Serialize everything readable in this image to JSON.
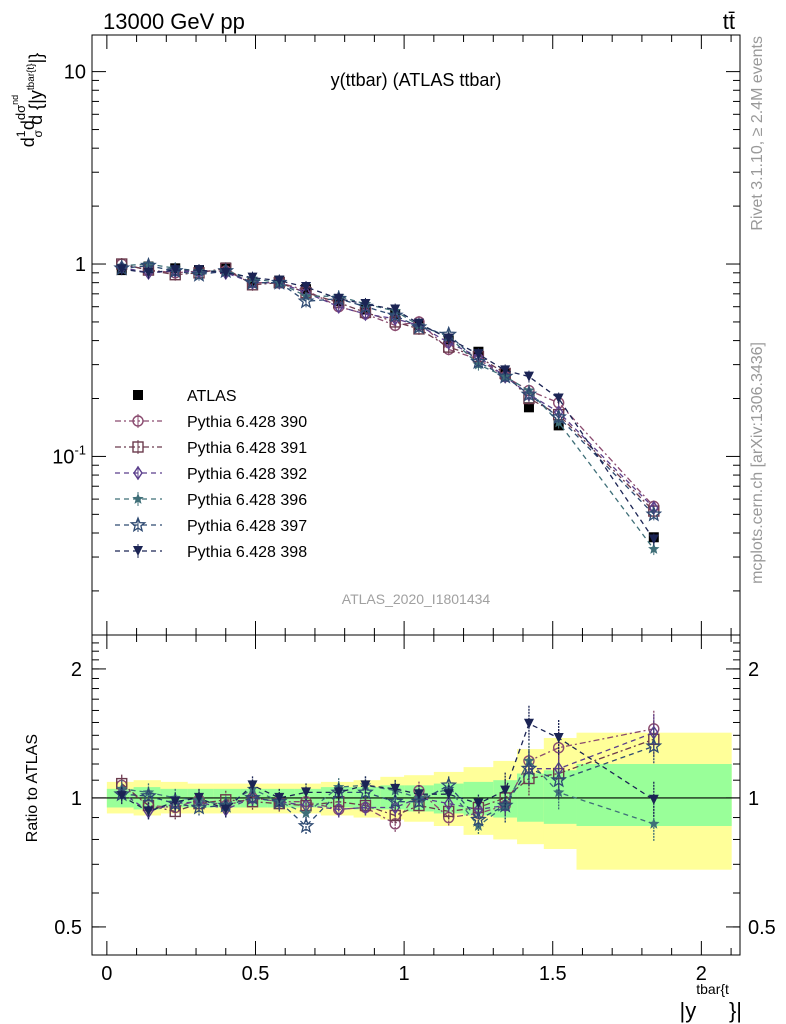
{
  "header": {
    "energy_label": "13000 GeV pp",
    "process_label": "tt̄",
    "rivet_label": "Rivet 3.1.10, ≥ 2.4M events",
    "mcplots_label": "mcplots.cern.ch [arXiv:1306.3436]"
  },
  "chart_data": [
    {
      "type": "scatter",
      "title": "y(ttbar) (ATLAS ttbar)",
      "watermark": "ATLAS_2020_I1801434",
      "ylabel": "1/σ dσ^nd / d{|y^tbar{t}|}",
      "xlabel": "|y^tbar{t}|",
      "xlim": [
        -0.05,
        2.13
      ],
      "ylim": [
        0.0118,
        15.5
      ],
      "yscale": "log",
      "y_ticks": [
        "10^-1",
        "1",
        "10"
      ],
      "legend_position": "middle-left",
      "x": [
        0.05,
        0.14,
        0.23,
        0.31,
        0.4,
        0.49,
        0.58,
        0.67,
        0.78,
        0.87,
        0.97,
        1.05,
        1.15,
        1.25,
        1.34,
        1.42,
        1.52,
        1.84
      ],
      "series": [
        {
          "name": "ATLAS",
          "marker": "filled-square",
          "color": "#000000",
          "y": [
            0.93,
            0.97,
            0.95,
            0.93,
            0.96,
            0.8,
            0.82,
            0.74,
            0.64,
            0.58,
            0.55,
            0.48,
            0.4,
            0.35,
            0.27,
            0.18,
            0.145,
            0.038
          ]
        },
        {
          "name": "Pythia 6.428 390",
          "marker": "open-circle",
          "color": "#8a4b6f",
          "dash": "6,3,2,3",
          "y": [
            1.0,
            0.93,
            0.9,
            0.92,
            0.92,
            0.8,
            0.8,
            0.73,
            0.6,
            0.55,
            0.48,
            0.5,
            0.36,
            0.32,
            0.26,
            0.22,
            0.19,
            0.055
          ]
        },
        {
          "name": "Pythia 6.428 391",
          "marker": "open-square",
          "color": "#6b3b4d",
          "dash": "6,3,2,3",
          "y": [
            1.0,
            0.93,
            0.88,
            0.9,
            0.95,
            0.78,
            0.8,
            0.71,
            0.63,
            0.56,
            0.5,
            0.46,
            0.37,
            0.33,
            0.27,
            0.2,
            0.165,
            0.052
          ]
        },
        {
          "name": "Pythia 6.428 392",
          "marker": "open-diamond",
          "color": "#5b3f8c",
          "dash": "5,4",
          "y": [
            0.96,
            0.9,
            0.92,
            0.91,
            0.9,
            0.8,
            0.8,
            0.71,
            0.6,
            0.55,
            0.52,
            0.48,
            0.39,
            0.33,
            0.26,
            0.21,
            0.17,
            0.054
          ]
        },
        {
          "name": "Pythia 6.428 396",
          "marker": "filled-star",
          "color": "#3f6f78",
          "dash": "5,4",
          "y": [
            0.98,
            1.0,
            0.95,
            0.92,
            0.92,
            0.84,
            0.8,
            0.68,
            0.68,
            0.62,
            0.57,
            0.48,
            0.42,
            0.3,
            0.26,
            0.22,
            0.15,
            0.033
          ]
        },
        {
          "name": "Pythia 6.428 397",
          "marker": "open-star",
          "color": "#2e4a72",
          "dash": "5,4",
          "y": [
            0.95,
            0.98,
            0.92,
            0.88,
            0.92,
            0.8,
            0.8,
            0.64,
            0.66,
            0.6,
            0.54,
            0.47,
            0.43,
            0.31,
            0.26,
            0.21,
            0.16,
            0.05
          ]
        },
        {
          "name": "Pythia 6.428 398",
          "marker": "filled-triangle-down",
          "color": "#1b2454",
          "dash": "5,4",
          "y": [
            0.94,
            0.9,
            0.93,
            0.93,
            0.9,
            0.85,
            0.82,
            0.76,
            0.66,
            0.62,
            0.58,
            0.49,
            0.41,
            0.34,
            0.28,
            0.26,
            0.2,
            0.037
          ]
        }
      ]
    },
    {
      "type": "scatter",
      "ylabel": "Ratio to ATLAS",
      "xlabel": "|y^tbar{t}|",
      "xlim": [
        -0.05,
        2.13
      ],
      "ylim": [
        0.43,
        2.4
      ],
      "yscale": "log",
      "y_ticks": [
        "0.5",
        "1",
        "2"
      ],
      "x_ticks": [
        "0",
        "0.5",
        "1",
        "1.5",
        "2"
      ],
      "reference_line": 1,
      "bin_edges": [
        0.0,
        0.09,
        0.18,
        0.27,
        0.36,
        0.45,
        0.54,
        0.63,
        0.72,
        0.83,
        0.92,
        1.0,
        1.1,
        1.2,
        1.3,
        1.38,
        1.47,
        1.58,
        2.1
      ],
      "band_inner": [
        [
          0.95,
          1.05
        ],
        [
          0.94,
          1.06
        ],
        [
          0.95,
          1.05
        ],
        [
          0.95,
          1.05
        ],
        [
          0.95,
          1.05
        ],
        [
          0.95,
          1.05
        ],
        [
          0.95,
          1.05
        ],
        [
          0.95,
          1.05
        ],
        [
          0.95,
          1.06
        ],
        [
          0.94,
          1.06
        ],
        [
          0.94,
          1.07
        ],
        [
          0.93,
          1.07
        ],
        [
          0.92,
          1.08
        ],
        [
          0.91,
          1.09
        ],
        [
          0.9,
          1.1
        ],
        [
          0.88,
          1.14
        ],
        [
          0.87,
          1.16
        ],
        [
          0.86,
          1.2
        ]
      ],
      "band_outer": [
        [
          0.92,
          1.09
        ],
        [
          0.91,
          1.1
        ],
        [
          0.92,
          1.09
        ],
        [
          0.92,
          1.08
        ],
        [
          0.92,
          1.08
        ],
        [
          0.92,
          1.08
        ],
        [
          0.92,
          1.08
        ],
        [
          0.92,
          1.08
        ],
        [
          0.91,
          1.09
        ],
        [
          0.9,
          1.1
        ],
        [
          0.89,
          1.12
        ],
        [
          0.88,
          1.13
        ],
        [
          0.86,
          1.15
        ],
        [
          0.82,
          1.18
        ],
        [
          0.8,
          1.22
        ],
        [
          0.78,
          1.3
        ],
        [
          0.76,
          1.38
        ],
        [
          0.68,
          1.42
        ]
      ],
      "x": [
        0.05,
        0.14,
        0.23,
        0.31,
        0.4,
        0.49,
        0.58,
        0.67,
        0.78,
        0.87,
        0.97,
        1.05,
        1.15,
        1.25,
        1.34,
        1.42,
        1.52,
        1.84
      ],
      "series": [
        {
          "name": "Pythia 6.428 390",
          "y": [
            1.07,
            0.96,
            0.95,
            0.99,
            0.96,
            1.0,
            0.98,
            0.98,
            0.94,
            0.95,
            0.87,
            1.04,
            0.9,
            0.92,
            0.96,
            1.22,
            1.31,
            1.45
          ]
        },
        {
          "name": "Pythia 6.428 391",
          "y": [
            1.08,
            0.96,
            0.93,
            0.97,
            0.99,
            0.98,
            0.97,
            0.96,
            0.98,
            0.96,
            0.91,
            0.96,
            0.93,
            0.95,
            1.0,
            1.11,
            1.14,
            1.37
          ]
        },
        {
          "name": "Pythia 6.428 392",
          "y": [
            1.03,
            0.93,
            0.97,
            0.98,
            0.94,
            1.0,
            0.98,
            0.96,
            0.94,
            0.95,
            0.95,
            1.0,
            0.97,
            0.94,
            0.96,
            1.17,
            1.17,
            1.42
          ]
        },
        {
          "name": "Pythia 6.428 396",
          "y": [
            1.05,
            1.03,
            1.0,
            0.99,
            0.96,
            1.05,
            0.98,
            0.92,
            1.06,
            1.07,
            1.04,
            1.0,
            1.05,
            0.86,
            0.96,
            1.22,
            1.03,
            0.87
          ]
        },
        {
          "name": "Pythia 6.428 397",
          "y": [
            1.02,
            1.01,
            0.97,
            0.95,
            0.96,
            1.0,
            0.98,
            0.86,
            1.03,
            1.03,
            0.98,
            0.98,
            1.07,
            0.89,
            0.96,
            1.17,
            1.1,
            1.32
          ]
        },
        {
          "name": "Pythia 6.428 398",
          "y": [
            1.01,
            0.93,
            0.98,
            1.0,
            0.94,
            1.07,
            1.0,
            1.03,
            1.03,
            1.07,
            1.05,
            1.02,
            1.02,
            0.97,
            1.04,
            1.49,
            1.38,
            0.99
          ]
        }
      ]
    }
  ]
}
